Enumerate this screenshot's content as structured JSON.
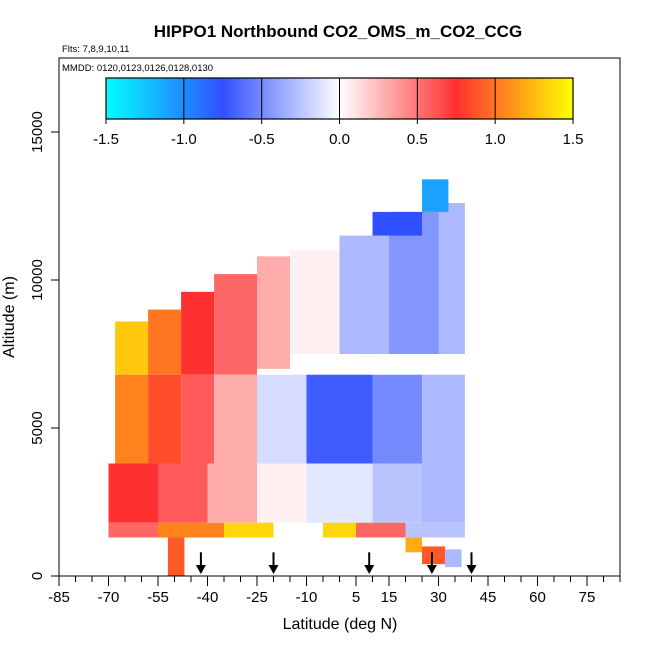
{
  "chart_data": {
    "type": "heatmap",
    "title": "HIPPO1 Northbound CO2_OMS_m_CO2_CCG",
    "subtitle_flights": "Flts: 7,8,9,10,11",
    "subtitle_dates": "MMDD: 0120,0123,0126,0128,0130",
    "xlabel": "Latitude (deg N)",
    "ylabel": "Altitude (m)",
    "xlim": [
      -85,
      85
    ],
    "ylim": [
      0,
      17500
    ],
    "x_tick_labels": [
      "-85",
      "-70",
      "-55",
      "-40",
      "-25",
      "-10",
      "5",
      "15",
      "30",
      "45",
      "60",
      "75"
    ],
    "y_tick_labels": [
      "0",
      "5000",
      "10000",
      "15000"
    ],
    "colorbar": {
      "range": [
        -1.5,
        1.5
      ],
      "tick_labels": [
        "-1.5",
        "-1.0",
        "-0.5",
        "0.0",
        "0.5",
        "1.0",
        "1.5"
      ],
      "colors": [
        "#00ffff",
        "#3050ff",
        "#ffffff",
        "#ff3030",
        "#ffff00"
      ]
    },
    "profile_latitudes": [
      -42,
      -20,
      9,
      28,
      40
    ],
    "cells": [
      {
        "lat0": -68,
        "lat1": -58,
        "alt0": 6800,
        "alt1": 8600,
        "value": 1.3
      },
      {
        "lat0": -58,
        "lat1": -48,
        "alt0": 6800,
        "alt1": 9000,
        "value": 1.0
      },
      {
        "lat0": -48,
        "lat1": -38,
        "alt0": 6800,
        "alt1": 9600,
        "value": 0.75
      },
      {
        "lat0": -38,
        "lat1": -25,
        "alt0": 6800,
        "alt1": 10200,
        "value": 0.55
      },
      {
        "lat0": -25,
        "lat1": -15,
        "alt0": 7000,
        "alt1": 10800,
        "value": 0.3
      },
      {
        "lat0": -15,
        "lat1": 0,
        "alt0": 7500,
        "alt1": 11000,
        "value": 0.05
      },
      {
        "lat0": 0,
        "lat1": 15,
        "alt0": 7500,
        "alt1": 11500,
        "value": -0.3
      },
      {
        "lat0": 15,
        "lat1": 30,
        "alt0": 7500,
        "alt1": 12300,
        "value": -0.45
      },
      {
        "lat0": 30,
        "lat1": 38,
        "alt0": 7500,
        "alt1": 12600,
        "value": -0.3
      },
      {
        "lat0": 10,
        "lat1": 25,
        "alt0": 11500,
        "alt1": 12300,
        "value": -0.75
      },
      {
        "lat0": 25,
        "lat1": 33,
        "alt0": 12300,
        "alt1": 13400,
        "value": -1.1
      },
      {
        "lat0": -68,
        "lat1": -58,
        "alt0": 3800,
        "alt1": 6800,
        "value": 1.05
      },
      {
        "lat0": -58,
        "lat1": -48,
        "alt0": 3800,
        "alt1": 6800,
        "value": 0.85
      },
      {
        "lat0": -48,
        "lat1": -38,
        "alt0": 3800,
        "alt1": 6800,
        "value": 0.6
      },
      {
        "lat0": -38,
        "lat1": -25,
        "alt0": 3800,
        "alt1": 6800,
        "value": 0.3
      },
      {
        "lat0": -25,
        "lat1": -10,
        "alt0": 3800,
        "alt1": 6800,
        "value": -0.15
      },
      {
        "lat0": -10,
        "lat1": 10,
        "alt0": 3800,
        "alt1": 6800,
        "value": -0.7
      },
      {
        "lat0": 10,
        "lat1": 25,
        "alt0": 3800,
        "alt1": 6800,
        "value": -0.5
      },
      {
        "lat0": 25,
        "lat1": 38,
        "alt0": 3800,
        "alt1": 6800,
        "value": -0.3
      },
      {
        "lat0": -70,
        "lat1": -55,
        "alt0": 1800,
        "alt1": 3800,
        "value": 0.75
      },
      {
        "lat0": -55,
        "lat1": -40,
        "alt0": 1800,
        "alt1": 3800,
        "value": 0.6
      },
      {
        "lat0": -40,
        "lat1": -25,
        "alt0": 1800,
        "alt1": 3800,
        "value": 0.3
      },
      {
        "lat0": -25,
        "lat1": -10,
        "alt0": 1800,
        "alt1": 3800,
        "value": 0.05
      },
      {
        "lat0": -10,
        "lat1": 10,
        "alt0": 1800,
        "alt1": 3800,
        "value": -0.1
      },
      {
        "lat0": 10,
        "lat1": 25,
        "alt0": 1800,
        "alt1": 3800,
        "value": -0.25
      },
      {
        "lat0": 25,
        "lat1": 38,
        "alt0": 1800,
        "alt1": 3800,
        "value": -0.3
      },
      {
        "lat0": -70,
        "lat1": -55,
        "alt0": 1300,
        "alt1": 1800,
        "value": 0.55
      },
      {
        "lat0": -55,
        "lat1": -35,
        "alt0": 1300,
        "alt1": 1800,
        "value": 1.05
      },
      {
        "lat0": -35,
        "lat1": -20,
        "alt0": 1300,
        "alt1": 1800,
        "value": 1.35
      },
      {
        "lat0": -5,
        "lat1": 5,
        "alt0": 1300,
        "alt1": 1800,
        "value": 1.35
      },
      {
        "lat0": 5,
        "lat1": 20,
        "alt0": 1300,
        "alt1": 1800,
        "value": 0.55
      },
      {
        "lat0": 20,
        "lat1": 38,
        "alt0": 1300,
        "alt1": 1800,
        "value": -0.25
      },
      {
        "lat0": -52,
        "lat1": -47,
        "alt0": 0,
        "alt1": 1300,
        "value": 0.9
      },
      {
        "lat0": 20,
        "lat1": 25,
        "alt0": 800,
        "alt1": 1300,
        "value": 1.2
      },
      {
        "lat0": 25,
        "lat1": 32,
        "alt0": 400,
        "alt1": 1000,
        "value": 0.9
      },
      {
        "lat0": 32,
        "lat1": 37,
        "alt0": 300,
        "alt1": 900,
        "value": -0.3
      }
    ]
  }
}
